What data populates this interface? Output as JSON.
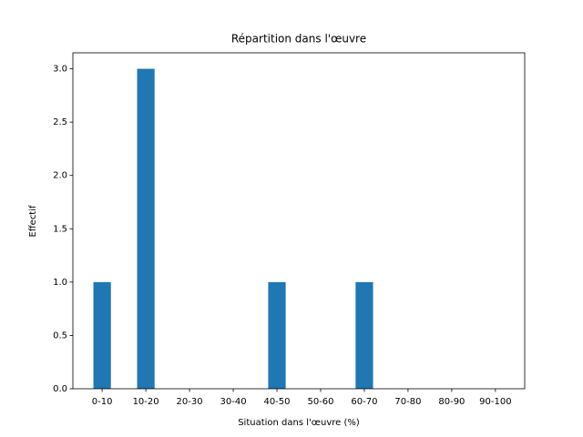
{
  "chart_data": {
    "type": "bar",
    "title": "Répartition dans l'œuvre",
    "x_label": "Situation dans l'œuvre (%)",
    "y_label": "Effectif",
    "categories": [
      "0-10",
      "10-20",
      "20-30",
      "30-40",
      "40-50",
      "50-60",
      "60-70",
      "70-80",
      "80-90",
      "90-100"
    ],
    "values": [
      1,
      3,
      0,
      0,
      1,
      0,
      1,
      0,
      0,
      0
    ],
    "color": "#1f77b4",
    "ylim": [
      0,
      3.15
    ],
    "yticks": [
      {
        "value": 0,
        "label": "0.0"
      },
      {
        "value": 0.5,
        "label": "0.5"
      },
      {
        "value": 1,
        "label": "1.0"
      },
      {
        "value": 1.5,
        "label": "1.5"
      },
      {
        "value": 2,
        "label": "2.0"
      },
      {
        "value": 2.5,
        "label": "2.5"
      },
      {
        "value": 3,
        "label": "3.0"
      }
    ],
    "grid": false
  }
}
